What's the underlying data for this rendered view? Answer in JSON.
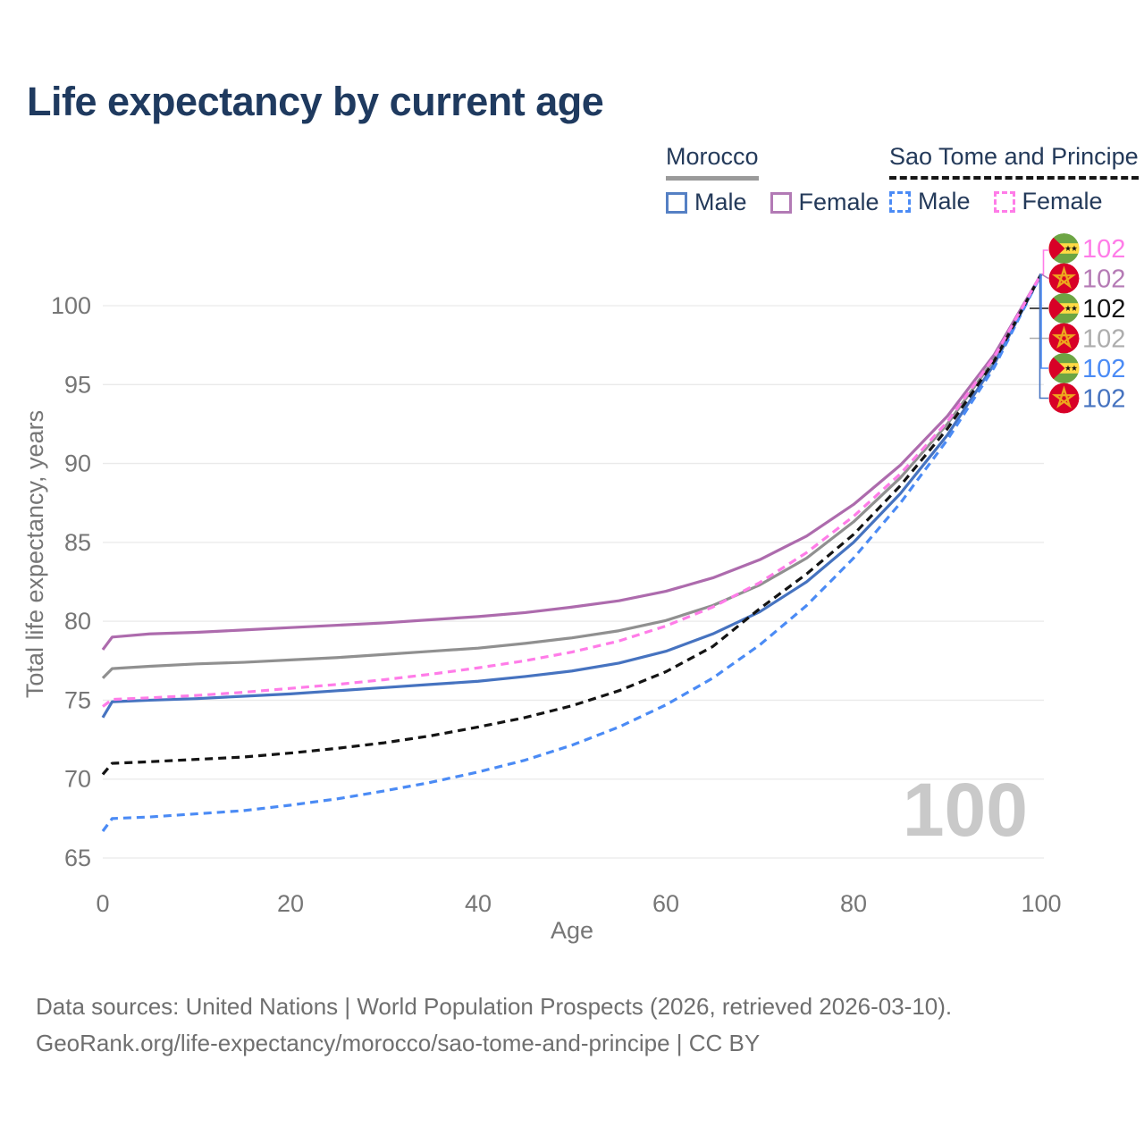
{
  "title": "Life expectancy by current age",
  "legend": {
    "morocco": {
      "name": "Morocco",
      "male": "Male",
      "female": "Female"
    },
    "stp": {
      "name": "Sao Tome and Principe",
      "male": "Male",
      "female": "Female"
    }
  },
  "watermark": "100",
  "footer": {
    "line1": "Data sources: United Nations | World Population Prospects (2026, retrieved 2026-03-10).",
    "line2": "GeoRank.org/life-expectancy/morocco/sao-tome-and-principe | CC BY"
  },
  "colors": {
    "title_text": "#1f3a5f",
    "tick_text": "#767676",
    "gridline": "#eaeaea",
    "footer_text": "#6f6f6f",
    "watermark": "#c9c9c9",
    "morocco_male": "#4673c0",
    "morocco_female": "#ad6bad",
    "morocco_all": "#909090",
    "stp_male": "#4b8bf5",
    "stp_female": "#ff7ce8",
    "stp_all": "#141414",
    "flag_red": "#d80027",
    "flag_green": "#6da544",
    "flag_yellow": "#ffda44",
    "flag_star_gold": "#eda71d"
  },
  "chart_data": {
    "type": "line",
    "title": "Life expectancy by current age",
    "xlabel": "Age",
    "ylabel": "Total life expectancy, years",
    "xlim": [
      0,
      100
    ],
    "ylim": [
      63.5,
      103.3
    ],
    "xticks": [
      0,
      20,
      40,
      60,
      80,
      100
    ],
    "yticks": [
      65,
      70,
      75,
      80,
      85,
      90,
      95,
      100
    ],
    "grid": "horizontal",
    "legend_position": "top-right",
    "x": [
      0,
      1,
      5,
      10,
      15,
      20,
      25,
      30,
      35,
      40,
      45,
      50,
      55,
      60,
      65,
      70,
      75,
      80,
      85,
      90,
      95,
      100
    ],
    "series": [
      {
        "name": "Morocco All",
        "country": "Morocco",
        "sex": "All",
        "color": "#909090",
        "dash": "solid",
        "flag": "morocco",
        "end_label": "102",
        "label_color": "#adadad",
        "end_row": 3,
        "values": [
          76.4,
          77.0,
          77.15,
          77.3,
          77.4,
          77.55,
          77.7,
          77.9,
          78.1,
          78.3,
          78.6,
          78.95,
          79.4,
          80.05,
          81.0,
          82.3,
          84.0,
          86.3,
          89.1,
          92.5,
          96.6,
          102
        ]
      },
      {
        "name": "Morocco Female",
        "country": "Morocco",
        "sex": "Female",
        "color": "#ad6bad",
        "dash": "solid",
        "flag": "morocco",
        "end_label": "102",
        "label_color": "#b57ab5",
        "end_row": 1,
        "values": [
          78.2,
          79.0,
          79.2,
          79.3,
          79.45,
          79.6,
          79.75,
          79.9,
          80.1,
          80.3,
          80.55,
          80.9,
          81.3,
          81.9,
          82.75,
          83.9,
          85.4,
          87.4,
          89.9,
          93.0,
          96.9,
          102
        ]
      },
      {
        "name": "Morocco Male",
        "country": "Morocco",
        "sex": "Male",
        "color": "#4673c0",
        "dash": "solid",
        "flag": "morocco",
        "end_label": "102",
        "label_color": "#4673c0",
        "end_row": 5,
        "values": [
          73.9,
          74.9,
          75.0,
          75.1,
          75.25,
          75.4,
          75.6,
          75.8,
          76.0,
          76.2,
          76.5,
          76.85,
          77.35,
          78.1,
          79.2,
          80.6,
          82.5,
          85.0,
          88.1,
          91.8,
          96.3,
          102
        ]
      },
      {
        "name": "Sao Tome and Principe Male",
        "country": "Sao Tome and Principe",
        "sex": "Male",
        "color": "#4b8bf5",
        "dash": "dashed",
        "flag": "stp",
        "end_label": "102",
        "label_color": "#4b8bf5",
        "end_row": 4,
        "values": [
          66.7,
          67.5,
          67.6,
          67.8,
          68.0,
          68.35,
          68.75,
          69.25,
          69.8,
          70.45,
          71.2,
          72.15,
          73.3,
          74.7,
          76.4,
          78.5,
          81.0,
          84.0,
          87.5,
          91.5,
          96.1,
          102
        ]
      },
      {
        "name": "Sao Tome and Principe All",
        "country": "Sao Tome and Principe",
        "sex": "All",
        "color": "#141414",
        "dash": "dashed",
        "flag": "stp",
        "end_label": "102",
        "label_color": "#141414",
        "end_row": 2,
        "values": [
          70.3,
          71.0,
          71.1,
          71.25,
          71.4,
          71.65,
          71.95,
          72.3,
          72.75,
          73.3,
          73.9,
          74.65,
          75.6,
          76.8,
          78.4,
          80.8,
          83.0,
          85.5,
          88.6,
          92.2,
          96.5,
          102
        ]
      },
      {
        "name": "Sao Tome and Principe Female",
        "country": "Sao Tome and Principe",
        "sex": "Female",
        "color": "#ff7ce8",
        "dash": "dashed",
        "flag": "stp",
        "end_label": "102",
        "label_color": "#ff7ce8",
        "end_row": 0,
        "values": [
          74.6,
          75.05,
          75.15,
          75.3,
          75.5,
          75.75,
          76.0,
          76.3,
          76.65,
          77.05,
          77.5,
          78.05,
          78.75,
          79.7,
          80.9,
          82.45,
          84.35,
          86.65,
          89.35,
          92.65,
          96.75,
          102
        ]
      }
    ]
  }
}
